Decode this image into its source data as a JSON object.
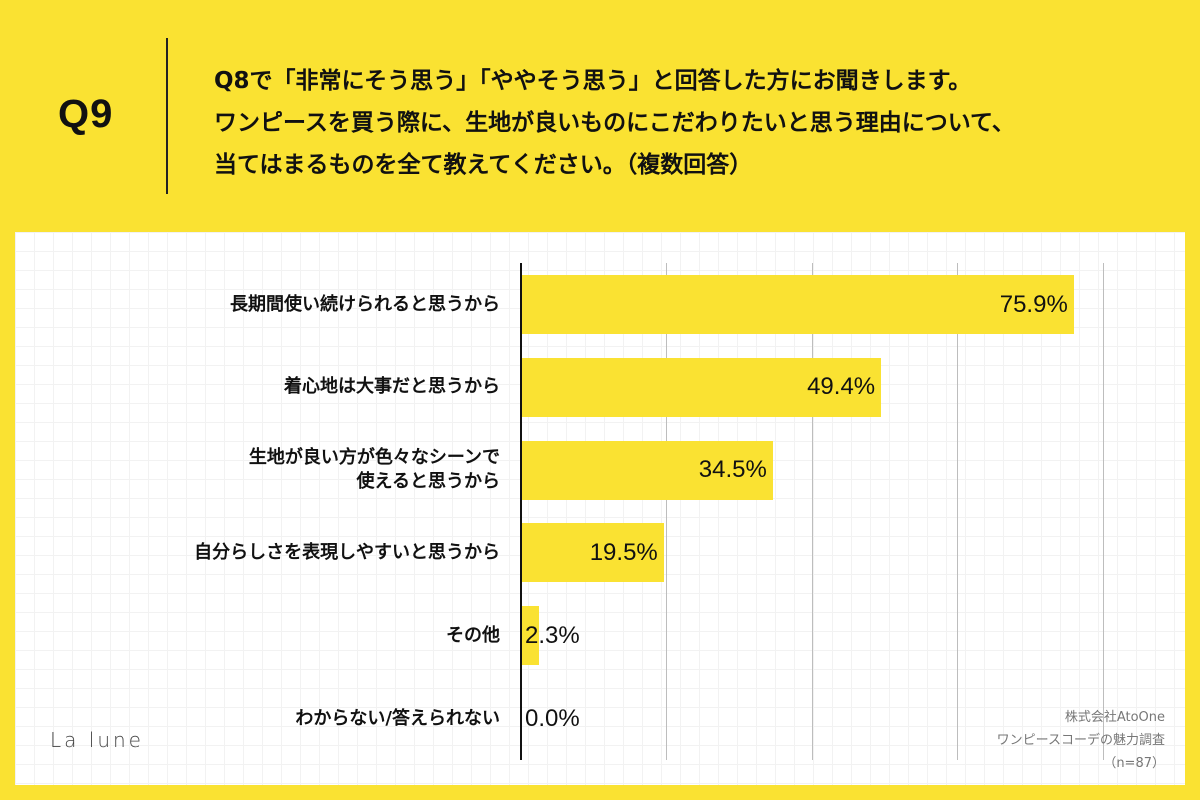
{
  "header": {
    "question_number": "Q9",
    "question_lines": [
      "Q8で「非常にそう思う」「ややそう思う」と回答した方にお聞きします。",
      "ワンピースを買う際に、生地が良いものにこだわりたいと思う理由について、",
      "当てはまるものを全て教えてください。（複数回答）"
    ]
  },
  "colors": {
    "background": "#fae232",
    "bar": "#fae232",
    "panel": "#ffffff",
    "axis": "#111111",
    "gridline": "#bdbdbd"
  },
  "rows": [
    {
      "label": "長期間使い続けられると思うから",
      "value": 75.9,
      "display": "75.9%"
    },
    {
      "label": "着心地は大事だと思うから",
      "value": 49.4,
      "display": "49.4%"
    },
    {
      "label": "生地が良い方が色々なシーンで\n使えると思うから",
      "value": 34.5,
      "display": "34.5%"
    },
    {
      "label": "自分らしさを表現しやすいと思うから",
      "value": 19.5,
      "display": "19.5%"
    },
    {
      "label": "その他",
      "value": 2.3,
      "display": "2.3%"
    },
    {
      "label": "わからない/答えられない",
      "value": 0.0,
      "display": "0.0%"
    }
  ],
  "logo": "La lune",
  "source": {
    "line1": "株式会社AtoOne",
    "line2": "ワンピースコーデの魅力調査",
    "line3": "（n=87）"
  },
  "chart_data": {
    "type": "bar",
    "orientation": "horizontal",
    "title": "Q8で「非常にそう思う」「ややそう思う」と回答した方にお聞きします。ワンピースを買う際に、生地が良いものにこだわりたいと思う理由について、当てはまるものを全て教えてください。（複数回答）",
    "categories": [
      "長期間使い続けられると思うから",
      "着心地は大事だと思うから",
      "生地が良い方が色々なシーンで使えると思うから",
      "自分らしさを表現しやすいと思うから",
      "その他",
      "わからない/答えられない"
    ],
    "values": [
      75.9,
      49.4,
      34.5,
      19.5,
      2.3,
      0.0
    ],
    "value_suffix": "%",
    "xlabel": "",
    "ylabel": "",
    "xlim": [
      0,
      80
    ],
    "gridlines": [
      20,
      40,
      60,
      80
    ],
    "grid": true,
    "legend": null,
    "sample_size": "n=87"
  }
}
